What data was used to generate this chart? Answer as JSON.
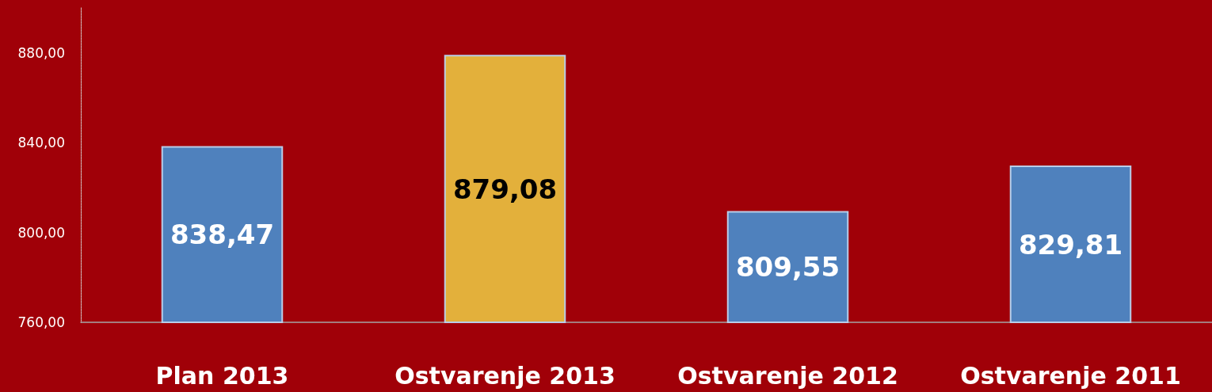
{
  "chart_data": {
    "type": "bar",
    "categories": [
      "Plan 2013",
      "Ostvarenje 2013",
      "Ostvarenje 2012",
      "Ostvarenje 2011"
    ],
    "values": [
      838.47,
      879.08,
      809.55,
      829.81
    ],
    "colors": [
      "#4f81bd",
      "#e3b03b",
      "#4f81bd",
      "#4f81bd"
    ],
    "value_labels": [
      "838,47",
      "879,08",
      "809,55",
      "829,81"
    ],
    "ylim": [
      760,
      900
    ],
    "yticks": [
      {
        "value": 760,
        "label": "760,00"
      },
      {
        "value": 800,
        "label": "800,00"
      },
      {
        "value": 840,
        "label": "840,00"
      },
      {
        "value": 880,
        "label": "880,00"
      }
    ],
    "grid": false
  }
}
